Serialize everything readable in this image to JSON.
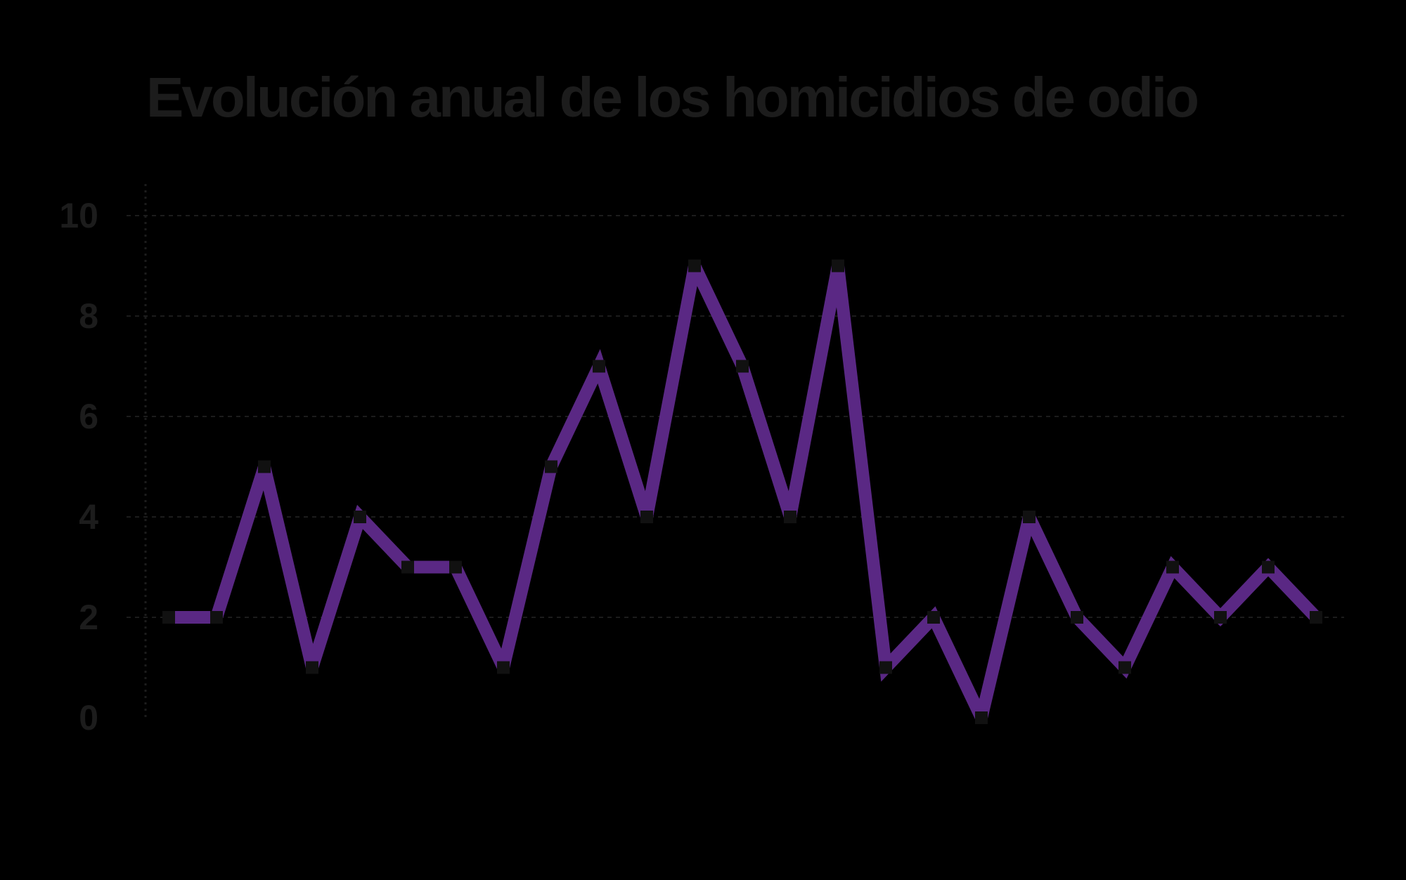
{
  "chart_data": {
    "type": "line",
    "title": "Evolución anual de los homicidios de odio",
    "categories": [
      null,
      null,
      null,
      null,
      null,
      null,
      null,
      null,
      null,
      null,
      null,
      null,
      null,
      null,
      null,
      null,
      null,
      null,
      null,
      null,
      null,
      null,
      null,
      null,
      null
    ],
    "series": [
      {
        "name": null,
        "color": "#5a2884",
        "values": [
          2,
          2,
          5,
          1,
          4,
          3,
          3,
          1,
          5,
          7,
          4,
          9,
          7,
          4,
          9,
          1,
          2,
          0,
          4,
          2,
          1,
          3,
          2,
          3,
          2
        ]
      }
    ],
    "ylim": [
      0,
      10
    ],
    "yticks": [
      0,
      2,
      4,
      6,
      8,
      10
    ],
    "grid": true
  }
}
